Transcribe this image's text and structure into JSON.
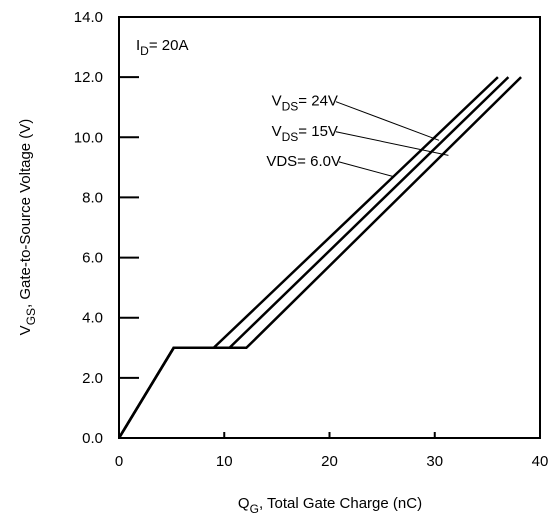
{
  "chart_data": {
    "type": "line",
    "xlabel": {
      "main": "Q",
      "sub": "G",
      "rest": ",  Total Gate Charge (nC)"
    },
    "ylabel": {
      "main": "V",
      "sub": "GS",
      "rest": ", Gate-to-Source Voltage (V)"
    },
    "xlim": [
      0,
      40
    ],
    "ylim": [
      0,
      14
    ],
    "xticks": [
      0,
      10,
      20,
      30,
      40
    ],
    "xtick_labels": [
      "0",
      "10",
      "20",
      "30",
      "40"
    ],
    "yticks": [
      0,
      2,
      4,
      6,
      8,
      10,
      12,
      14
    ],
    "ytick_labels": [
      "0.0",
      "2.0",
      "4.0",
      "6.0",
      "8.0",
      "10.0",
      "12.0",
      "14.0"
    ],
    "grid": false,
    "condition": {
      "main": "I",
      "sub": "D",
      "rest": "= 20A"
    },
    "series": [
      {
        "name": "VDS= 24V",
        "label_main": "V",
        "label_sub": "DS",
        "label_rest": "= 24V",
        "x": [
          0,
          5.2,
          12.1,
          38.2
        ],
        "y": [
          0,
          3.0,
          3.0,
          12.0
        ]
      },
      {
        "name": "VDS= 15V",
        "label_main": "V",
        "label_sub": "DS",
        "label_rest": "= 15V",
        "x": [
          0,
          5.2,
          10.5,
          37.0
        ],
        "y": [
          0,
          3.0,
          3.0,
          12.0
        ]
      },
      {
        "name": "VDS= 6.0V",
        "label_main": "VDS= 6.0V",
        "label_sub": "",
        "label_rest": "",
        "x": [
          0,
          5.2,
          9.0,
          36.0
        ],
        "y": [
          0,
          3.0,
          3.0,
          12.0
        ]
      }
    ],
    "annotations": [
      {
        "series": 0,
        "text_x": 14.5,
        "text_y": 11.05,
        "arrow_to": [
          30.4,
          9.9
        ]
      },
      {
        "series": 1,
        "text_x": 14.5,
        "text_y": 10.05,
        "arrow_to": [
          31.3,
          9.4
        ]
      },
      {
        "series": 2,
        "text_x": 14.0,
        "text_y": 9.05,
        "arrow_to": [
          26.0,
          8.7
        ]
      }
    ]
  }
}
